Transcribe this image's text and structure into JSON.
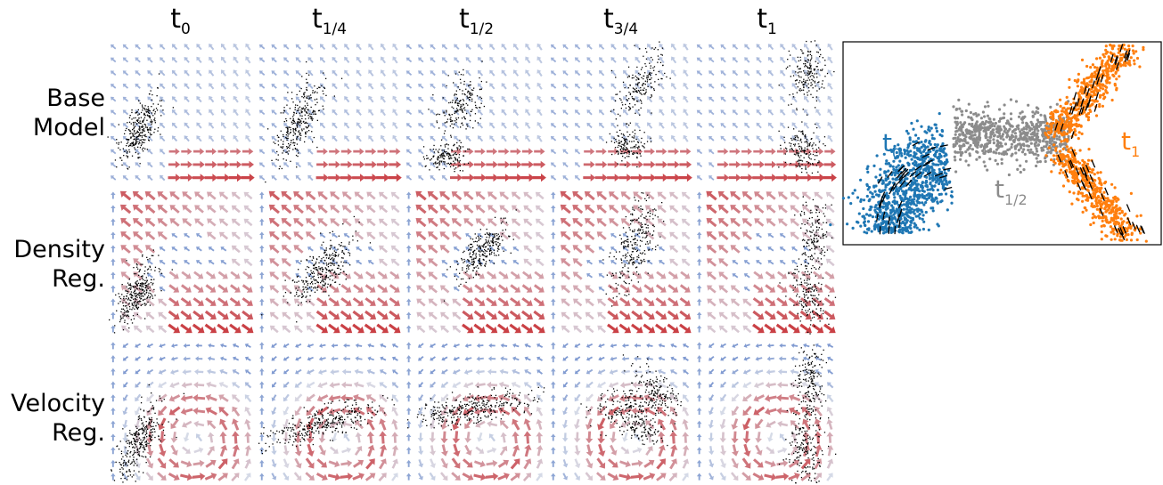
{
  "columns": [
    {
      "main": "t",
      "sub": "0"
    },
    {
      "main": "t",
      "sub": "1/4"
    },
    {
      "main": "t",
      "sub": "1/2"
    },
    {
      "main": "t",
      "sub": "3/4"
    },
    {
      "main": "t",
      "sub": "1"
    }
  ],
  "rows": [
    {
      "line1": "Base",
      "line2": "Model"
    },
    {
      "line1": "Density",
      "line2": "Reg."
    },
    {
      "line1": "Velocity",
      "line2": "Reg."
    }
  ],
  "inset": {
    "labels": [
      {
        "main": "t",
        "sub": "0",
        "color": "#1f77b4"
      },
      {
        "main": "t",
        "sub": "1/2",
        "color": "#8c8c8c"
      },
      {
        "main": "t",
        "sub": "1",
        "color": "#ff7f0e"
      }
    ]
  },
  "colors": {
    "cool": "#5b7fc7",
    "light": "#d9dde8",
    "warm": "#c9353a",
    "points": "#000000",
    "t0": "#1f77b4",
    "t_half": "#8c8c8c",
    "t1": "#ff7f0e"
  }
}
